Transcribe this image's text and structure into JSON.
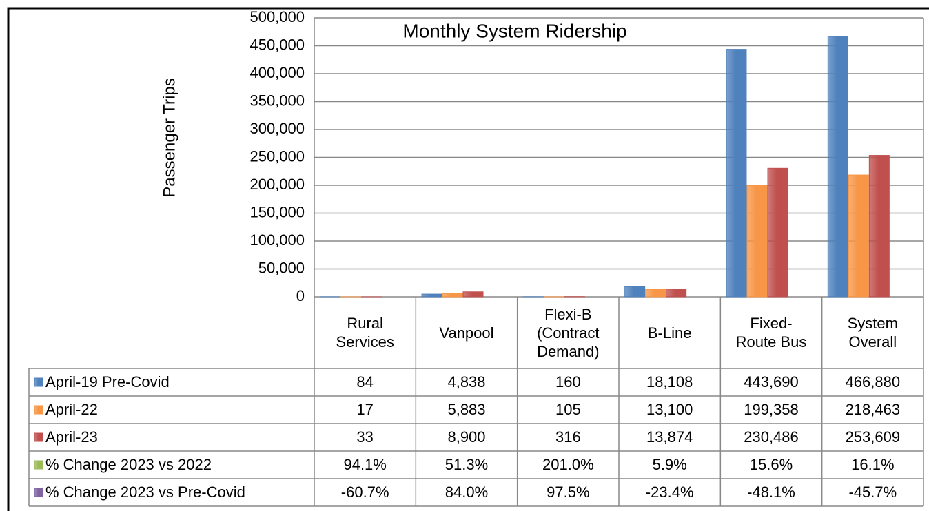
{
  "chart_data": {
    "type": "bar",
    "title": "Monthly System Ridership",
    "y_label": "Passenger  Trips",
    "categories": [
      "Rural Services",
      "Vanpool",
      "Flexi-B (Contract Demand)",
      "B-Line",
      "Fixed-Route Bus",
      "System Overall"
    ],
    "ylim": [
      0,
      500000
    ],
    "yticks": [
      0,
      {
        "value": 50000,
        "label": "50,000"
      },
      {
        "value": 100000,
        "label": "100,000"
      },
      {
        "value": 150000,
        "label": "150,000"
      },
      {
        "value": 200000,
        "label": "200,000"
      },
      {
        "value": 250000,
        "label": "250,000"
      },
      {
        "value": 300000,
        "label": "300,000"
      },
      {
        "value": 350000,
        "label": "350,000"
      },
      {
        "value": 400000,
        "label": "400,000"
      },
      {
        "value": 450000,
        "label": "450,000"
      },
      {
        "value": 500000,
        "label": "500,000"
      }
    ],
    "grid": true,
    "series": [
      {
        "name": "April-19 Pre-Covid",
        "color": "#4f81bd",
        "values": [
          84,
          4838,
          160,
          18108,
          443690,
          466880
        ],
        "value_labels": [
          "84",
          "4,838",
          "160",
          "18,108",
          "443,690",
          "466,880"
        ]
      },
      {
        "name": "April-22",
        "color": "#f79646",
        "values": [
          17,
          5883,
          105,
          13100,
          199358,
          218463
        ],
        "value_labels": [
          "17",
          "5,883",
          "105",
          "13,100",
          "199,358",
          "218,463"
        ]
      },
      {
        "name": "April-23",
        "color": "#c0504d",
        "values": [
          33,
          8900,
          316,
          13874,
          230486,
          253609
        ],
        "value_labels": [
          "33",
          "8,900",
          "316",
          "13,874",
          "230,486",
          "253,609"
        ]
      },
      {
        "name": "% Change 2023 vs 2022",
        "color": "#9bbb59",
        "values": [
          94.1,
          51.3,
          201.0,
          5.9,
          15.6,
          16.1
        ],
        "value_labels": [
          "94.1%",
          "51.3%",
          "201.0%",
          "5.9%",
          "15.6%",
          "16.1%"
        ],
        "bars": false
      },
      {
        "name": "% Change 2023 vs Pre-Covid",
        "color": "#8064a2",
        "values": [
          -60.7,
          84.0,
          97.5,
          -23.4,
          -48.1,
          -45.7
        ],
        "value_labels": [
          "-60.7%",
          "84.0%",
          "97.5%",
          "-23.4%",
          "-48.1%",
          "-45.7%"
        ],
        "bars": false
      }
    ]
  }
}
